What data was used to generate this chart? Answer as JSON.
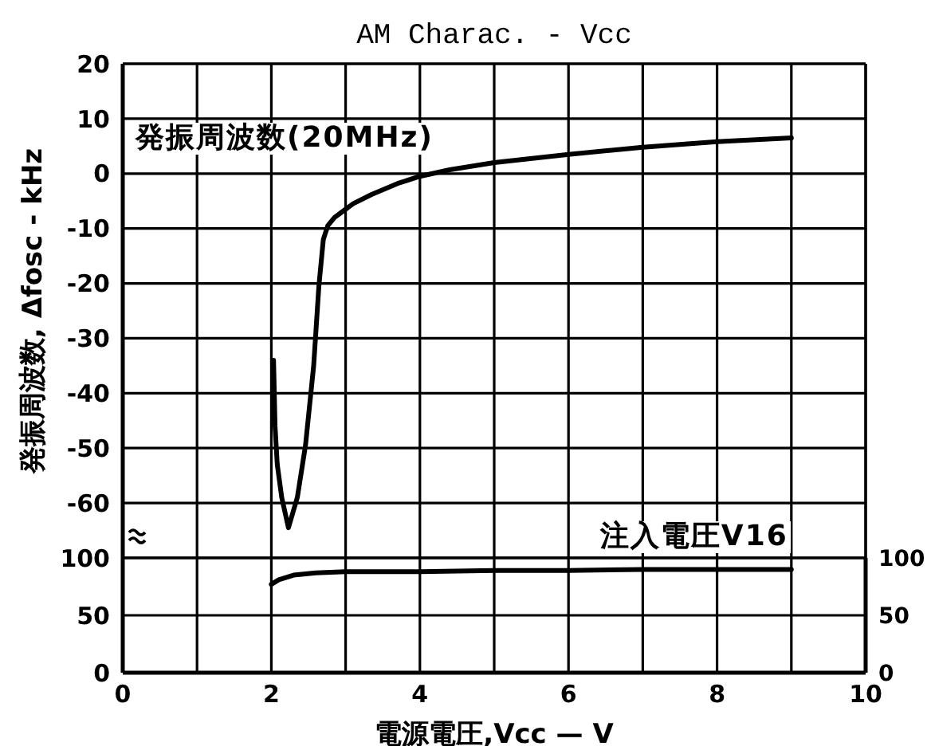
{
  "chart_data": [
    {
      "type": "line",
      "title": "AM Charac. - Vcc",
      "ylabel": "発振周波数, Δfosc - kHz",
      "xlim": [
        0,
        10
      ],
      "xticks": [
        0,
        {
          "value": 1,
          "label": null
        },
        2,
        {
          "value": 3,
          "label": null
        },
        4,
        {
          "value": 5,
          "label": null
        },
        6,
        {
          "value": 7,
          "label": null
        },
        8,
        {
          "value": 9,
          "label": null
        },
        10
      ],
      "ylim": [
        -70,
        20
      ],
      "yticks": [
        -60,
        -50,
        -40,
        -30,
        -20,
        -10,
        0,
        10,
        20
      ],
      "tick_labels": "y",
      "grid": true,
      "series": [
        {
          "name": "発振周波数(20MHz)",
          "color": "#000000",
          "x": [
            2.03,
            2.05,
            2.08,
            2.14,
            2.23,
            2.35,
            2.46,
            2.57,
            2.64,
            2.7,
            2.76,
            2.85,
            2.95,
            3.1,
            3.35,
            3.7,
            4.0,
            4.4,
            5.0,
            6.0,
            7.0,
            8.0,
            9.0
          ],
          "values": [
            -34,
            -46,
            -53,
            -59,
            -64.5,
            -59,
            -49.5,
            -35,
            -20.5,
            -12,
            -9.5,
            -8,
            -7,
            -5.5,
            -3.8,
            -1.8,
            -0.5,
            0.7,
            2,
            3.5,
            4.8,
            5.8,
            6.5
          ]
        }
      ]
    },
    {
      "type": "line",
      "xlabel": "電源電圧,Vcc — V",
      "xlim": [
        0,
        10
      ],
      "xticks": [
        0,
        {
          "value": 1,
          "label": null
        },
        2,
        {
          "value": 3,
          "label": null
        },
        4,
        {
          "value": 5,
          "label": null
        },
        6,
        {
          "value": 7,
          "label": null
        },
        8,
        {
          "value": 9,
          "label": null
        },
        10
      ],
      "ylim": [
        0,
        100
      ],
      "yticks": [
        0,
        50,
        100
      ],
      "y2lim": [
        0,
        100
      ],
      "y2ticks": [
        0,
        50,
        100
      ],
      "grid": true,
      "series": [
        {
          "name": "注入電圧V16",
          "color": "#000000",
          "x": [
            2.0,
            2.1,
            2.3,
            2.6,
            3.0,
            4.0,
            5.0,
            6.0,
            7.0,
            8.0,
            9.0
          ],
          "values": [
            77,
            81,
            85,
            87,
            88,
            88,
            89,
            89,
            90,
            90,
            90
          ]
        }
      ]
    }
  ]
}
